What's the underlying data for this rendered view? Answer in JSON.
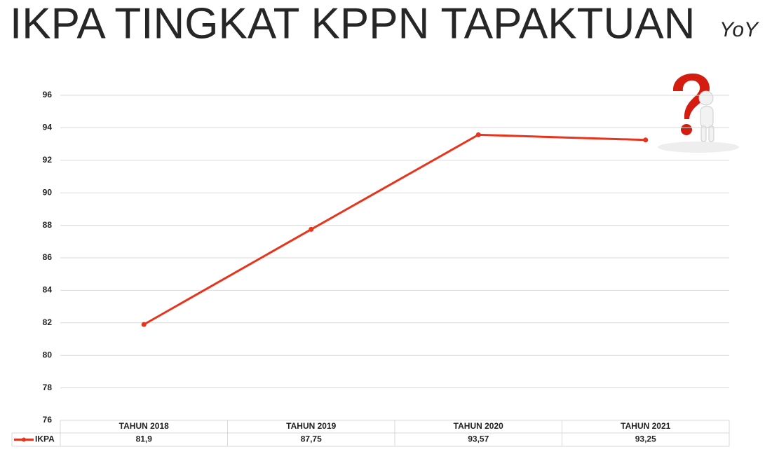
{
  "chart_data": {
    "type": "line",
    "title": "IKPA TINGKAT KPPN TAPAKTUAN",
    "subtitle": "YoY",
    "categories": [
      "TAHUN 2018",
      "TAHUN 2019",
      "TAHUN 2020",
      "TAHUN 2021"
    ],
    "series": [
      {
        "name": "IKPA",
        "color": "#e8341c",
        "values": [
          81.9,
          87.75,
          93.57,
          93.25
        ],
        "value_labels": [
          "81,9",
          "87,75",
          "93,57",
          "93,25"
        ]
      }
    ],
    "ylim": [
      76,
      96
    ],
    "yticks": [
      76,
      78,
      80,
      82,
      84,
      86,
      88,
      90,
      92,
      94,
      96
    ],
    "grid": true
  }
}
